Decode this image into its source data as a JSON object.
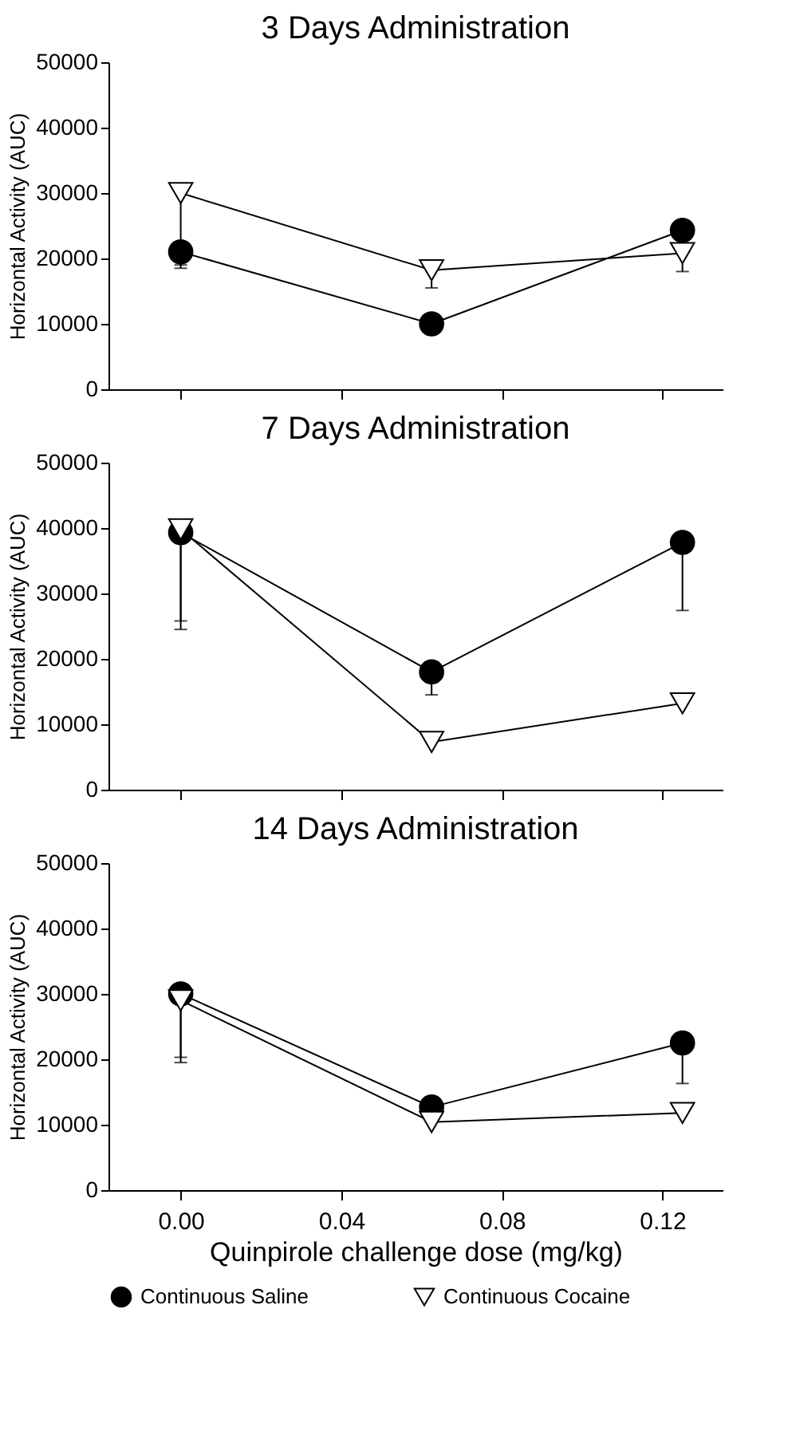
{
  "chart_data": [
    {
      "type": "line",
      "title": "3 Days Administration",
      "ylabel": "Horizontal Activity (AUC)",
      "x": [
        0,
        0.0625,
        0.125
      ],
      "xlim": [
        -0.018,
        0.135
      ],
      "xticks": [
        0.0,
        0.04,
        0.08,
        0.12
      ],
      "ylim": [
        0,
        50000
      ],
      "yticks": [
        0,
        10000,
        20000,
        30000,
        40000,
        50000
      ],
      "tick_labels": "y",
      "grid": false,
      "legend": "bottom",
      "series": [
        {
          "name": "Continuous Saline",
          "color": "#000000",
          "marker": "circle",
          "values": [
            21000,
            10000,
            24300
          ],
          "errors": [
            [
              18500,
              21000
            ],
            null,
            null
          ]
        },
        {
          "name": "Continuous Cocaine",
          "color": "#000000",
          "marker": "triangle",
          "values": [
            30000,
            18200,
            20800
          ],
          "errors": [
            [
              19000,
              30000
            ],
            [
              15500,
              18200
            ],
            [
              18000,
              20800
            ]
          ]
        }
      ]
    },
    {
      "type": "line",
      "title": "7 Days Administration",
      "ylabel": "Horizontal Activity (AUC)",
      "x": [
        0,
        0.0625,
        0.125
      ],
      "xlim": [
        -0.018,
        0.135
      ],
      "xticks": [
        0.0,
        0.04,
        0.08,
        0.12
      ],
      "ylim": [
        0,
        50000
      ],
      "yticks": [
        0,
        10000,
        20000,
        30000,
        40000,
        50000
      ],
      "tick_labels": "y",
      "grid": false,
      "legend": "bottom",
      "series": [
        {
          "name": "Continuous Saline",
          "color": "#000000",
          "marker": "circle",
          "values": [
            39300,
            18000,
            37800
          ],
          "errors": [
            [
              24500,
              39300
            ],
            [
              14500,
              18000
            ],
            [
              27400,
              37800
            ]
          ]
        },
        {
          "name": "Continuous Cocaine",
          "color": "#000000",
          "marker": "triangle",
          "values": [
            39800,
            7300,
            13200
          ],
          "errors": [
            [
              25800,
              39800
            ],
            null,
            null
          ]
        }
      ]
    },
    {
      "type": "line",
      "title": "14 Days Administration",
      "ylabel": "Horizontal Activity (AUC)",
      "xlabel": "Quinpirole challenge dose (mg/kg)",
      "x": [
        0,
        0.0625,
        0.125
      ],
      "xlim": [
        -0.018,
        0.135
      ],
      "xticks": [
        {
          "value": 0.0,
          "label": "0.00"
        },
        0.04,
        0.08,
        0.12
      ],
      "ylim": [
        0,
        50000
      ],
      "yticks": [
        0,
        10000,
        20000,
        30000,
        40000,
        50000
      ],
      "grid": false,
      "legend": "bottom",
      "series": [
        {
          "name": "Continuous Saline",
          "color": "#000000",
          "marker": "circle",
          "values": [
            30000,
            12700,
            22500
          ],
          "errors": [
            [
              19500,
              30000
            ],
            null,
            [
              16300,
              22500
            ]
          ]
        },
        {
          "name": "Continuous Cocaine",
          "color": "#000000",
          "marker": "triangle",
          "values": [
            29000,
            10400,
            11800
          ],
          "errors": [
            [
              20300,
              29000
            ],
            null,
            null
          ]
        }
      ]
    }
  ]
}
